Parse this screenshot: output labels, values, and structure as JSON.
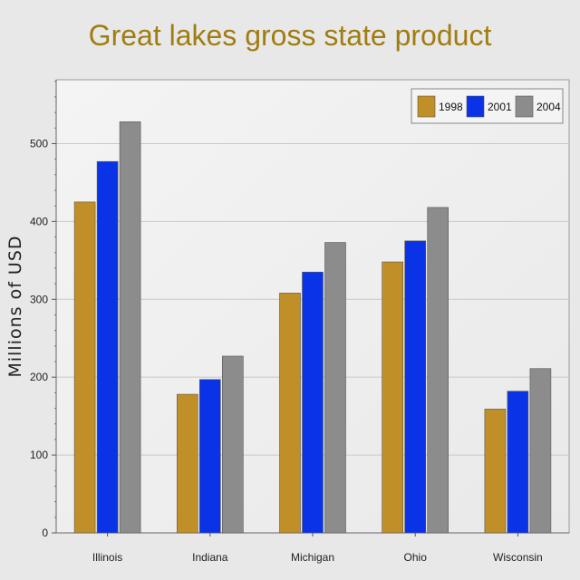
{
  "chart_data": {
    "type": "bar",
    "title": "Great lakes gross state product",
    "xlabel": "",
    "ylabel": "Millions of USD",
    "categories": [
      "Illinois",
      "Indiana",
      "Michigan",
      "Ohio",
      "Wisconsin"
    ],
    "series": [
      {
        "name": "1998",
        "color": "#c08f27",
        "values": [
          425,
          178,
          308,
          348,
          159
        ]
      },
      {
        "name": "2001",
        "color": "#0a33e8",
        "values": [
          477,
          197,
          335,
          375,
          182
        ]
      },
      {
        "name": "2004",
        "color": "#8c8c8c",
        "values": [
          528,
          227,
          373,
          418,
          211
        ]
      }
    ],
    "ylim": [
      0,
      582
    ],
    "yticks": [
      0,
      100,
      200,
      300,
      400,
      500
    ],
    "grid": true,
    "legend_position": "top-right"
  }
}
